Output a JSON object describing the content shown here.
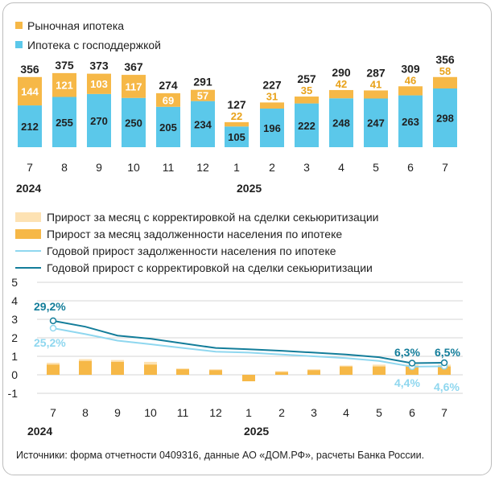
{
  "colors": {
    "market": "#f6b847",
    "state": "#5bc8ea",
    "market_text": "#e8a21a",
    "adj_light": "#fde2b3",
    "monthly": "#f6b847",
    "annual": "#8fd7ef",
    "annual_adj": "#137d9a",
    "annual_label": "#8fd7ef"
  },
  "chart_data": [
    {
      "type": "bar",
      "stacked": true,
      "legend": [
        "Рыночная ипотека",
        "Ипотека с господдержкой"
      ],
      "categories": [
        "7",
        "8",
        "9",
        "10",
        "11",
        "12",
        "1",
        "2",
        "3",
        "4",
        "5",
        "6",
        "7"
      ],
      "years": [
        {
          "label": "2024",
          "at_index": 0
        },
        {
          "label": "2025",
          "at_index": 6
        }
      ],
      "series": [
        {
          "name": "Ипотека с господдержкой",
          "values": [
            212,
            255,
            270,
            250,
            205,
            234,
            105,
            196,
            222,
            248,
            247,
            263,
            298
          ]
        },
        {
          "name": "Рыночная ипотека",
          "values": [
            144,
            121,
            103,
            117,
            69,
            57,
            22,
            31,
            35,
            42,
            41,
            46,
            58
          ]
        }
      ],
      "totals": [
        356,
        375,
        373,
        367,
        274,
        291,
        127,
        227,
        257,
        290,
        287,
        309,
        356
      ],
      "ylim": [
        0,
        400
      ]
    },
    {
      "type": "bar+line",
      "legend": [
        "Прирост за месяц с корректировкой на сделки секьюритизации",
        "Прирост за месяц задолженности населения по ипотеке",
        "Годовой прирост задолженности населения по ипотеке",
        "Годовой прирост с корректировкой на сделки секьюритизации"
      ],
      "categories": [
        "7",
        "8",
        "9",
        "10",
        "11",
        "12",
        "1",
        "2",
        "3",
        "4",
        "5",
        "6",
        "7"
      ],
      "years": [
        {
          "label": "2024",
          "at_index": 0
        },
        {
          "label": "2025",
          "at_index": 6
        }
      ],
      "yticks": [
        "5",
        "4",
        "3",
        "2",
        "1",
        "0",
        "-1"
      ],
      "ylim": [
        -1,
        5
      ],
      "grid": true,
      "monthly_adj": [
        0.65,
        0.85,
        0.8,
        0.7,
        0.35,
        0.3,
        -0.3,
        0.2,
        0.3,
        0.5,
        0.55,
        0.55,
        0.55
      ],
      "monthly": [
        0.55,
        0.75,
        0.7,
        0.55,
        0.3,
        0.25,
        -0.35,
        0.15,
        0.25,
        0.45,
        0.45,
        0.45,
        0.45
      ],
      "annual": [
        2.52,
        2.2,
        1.85,
        1.65,
        1.45,
        1.25,
        1.2,
        1.1,
        1.0,
        0.9,
        0.75,
        0.44,
        0.46
      ],
      "annual_adj": [
        2.92,
        2.6,
        2.12,
        1.95,
        1.7,
        1.45,
        1.38,
        1.3,
        1.2,
        1.1,
        0.95,
        0.63,
        0.65
      ],
      "labels": {
        "annual_adj_start": "29,2%",
        "annual_start": "25,2%",
        "annual_adj_6": "6,3%",
        "annual_adj_7": "6,5%",
        "annual_6": "4,4%",
        "annual_7": "4,6%"
      }
    }
  ],
  "source": "Источники: форма отчетности 0409316, данные АО «ДОМ.РФ», расчеты Банка России."
}
